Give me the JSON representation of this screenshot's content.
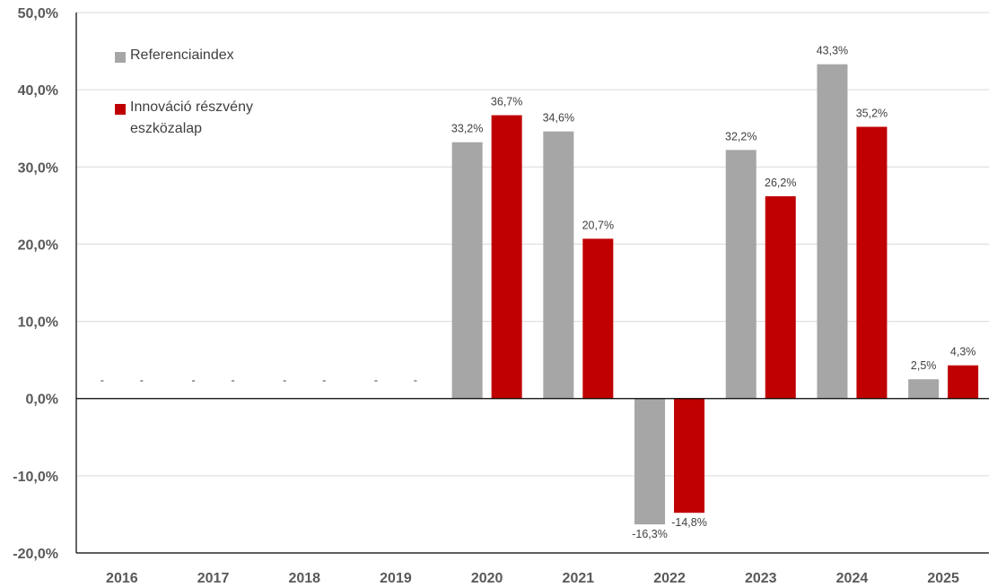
{
  "chart_data": {
    "type": "bar",
    "categories": [
      "2016",
      "2017",
      "2018",
      "2019",
      "2020",
      "2021",
      "2022",
      "2023",
      "2024",
      "2025"
    ],
    "series": [
      {
        "name": "Referenciaindex",
        "color": "#a6a6a6",
        "values": [
          null,
          null,
          null,
          null,
          33.2,
          34.6,
          -16.3,
          32.2,
          43.3,
          2.5
        ],
        "labels": [
          "-",
          "-",
          "-",
          "-",
          "33,2%",
          "34,6%",
          "-16,3%",
          "32,2%",
          "43,3%",
          "2,5%"
        ]
      },
      {
        "name": "Innováció részvény eszközalap",
        "name_lines": [
          "Innováció részvény",
          "eszközalap"
        ],
        "color": "#c00000",
        "values": [
          null,
          null,
          null,
          null,
          36.7,
          20.7,
          -14.8,
          26.2,
          35.2,
          4.3
        ],
        "labels": [
          "-",
          "-",
          "-",
          "-",
          "36,7%",
          "20,7%",
          "-14,8%",
          "26,2%",
          "35,2%",
          "4,3%"
        ]
      }
    ],
    "yticks": [
      {
        "value": 50,
        "label": "50,0%"
      },
      {
        "value": 40,
        "label": "40,0%"
      },
      {
        "value": 30,
        "label": "30,0%"
      },
      {
        "value": 20,
        "label": "20,0%"
      },
      {
        "value": 10,
        "label": "10,0%"
      },
      {
        "value": 0,
        "label": "0,0%"
      },
      {
        "value": -10,
        "label": "-10,0%"
      },
      {
        "value": -20,
        "label": "-20,0%"
      }
    ],
    "ylim": [
      -20,
      50
    ],
    "grid": true,
    "legend_position": "top-left",
    "title": "",
    "xlabel": "",
    "ylabel": ""
  }
}
